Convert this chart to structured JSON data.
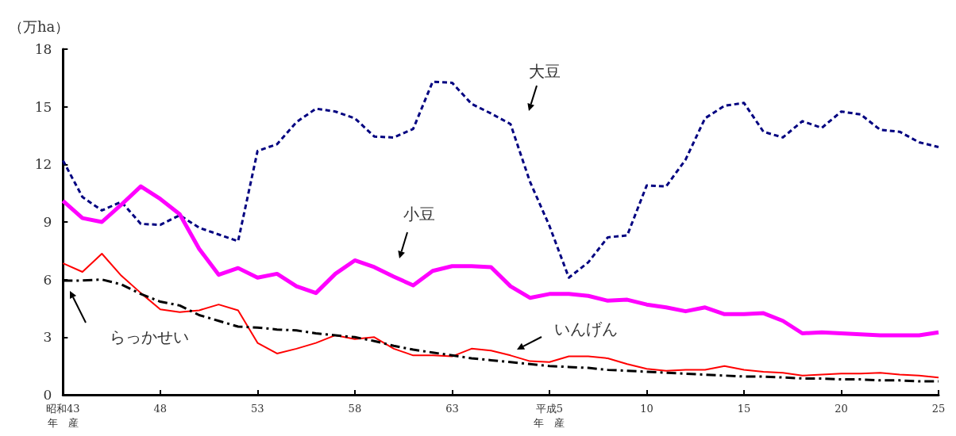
{
  "chart_data": {
    "type": "line",
    "ylabel": "（万ha）",
    "categories": [
      "昭和43\n年　産",
      null,
      null,
      null,
      null,
      "48",
      null,
      null,
      null,
      null,
      "53",
      null,
      null,
      null,
      null,
      "58",
      null,
      null,
      null,
      null,
      "63",
      null,
      null,
      null,
      null,
      "平成5\n年　産",
      null,
      null,
      null,
      null,
      "10",
      null,
      null,
      null,
      null,
      "15",
      null,
      null,
      null,
      null,
      "20",
      null,
      null,
      null,
      null,
      "25"
    ],
    "ylim": [
      0,
      18
    ],
    "yticks": [
      0,
      3,
      6,
      9,
      12,
      15,
      18
    ],
    "grid": false,
    "legend": false,
    "marker": "none",
    "series": [
      {
        "name": "大豆",
        "color": "#000080",
        "line_style": "dashed",
        "values": [
          12.2,
          10.3,
          9.6,
          10.05,
          8.9,
          8.85,
          9.35,
          8.7,
          8.35,
          8.0,
          12.7,
          13.05,
          14.2,
          14.9,
          14.75,
          14.4,
          13.45,
          13.4,
          13.85,
          16.3,
          16.25,
          15.15,
          14.65,
          14.1,
          11.1,
          8.8,
          6.1,
          6.9,
          8.2,
          8.3,
          10.9,
          10.85,
          12.25,
          14.4,
          15.05,
          15.2,
          13.7,
          13.4,
          14.25,
          13.9,
          14.75,
          14.6,
          13.8,
          13.7,
          13.15,
          12.9
        ]
      },
      {
        "name": "小豆",
        "color": "#ff00ff",
        "line_style": "solid",
        "values": [
          10.1,
          9.2,
          9.0,
          9.9,
          10.85,
          10.2,
          9.4,
          7.6,
          6.25,
          6.6,
          6.1,
          6.3,
          5.65,
          5.3,
          6.3,
          7.0,
          6.65,
          6.15,
          5.7,
          6.45,
          6.7,
          6.7,
          6.65,
          5.65,
          5.05,
          5.25,
          5.25,
          5.15,
          4.9,
          4.95,
          4.7,
          4.55,
          4.35,
          4.55,
          4.2,
          4.2,
          4.25,
          3.85,
          3.2,
          3.25,
          3.2,
          3.15,
          3.1,
          3.1,
          3.1,
          3.25
        ]
      },
      {
        "name": "いんげん",
        "color": "#ff0000",
        "line_style": "solid",
        "values": [
          6.85,
          6.4,
          7.35,
          6.2,
          5.3,
          4.45,
          4.3,
          4.4,
          4.7,
          4.4,
          2.7,
          2.15,
          2.4,
          2.7,
          3.1,
          2.9,
          3.0,
          2.4,
          2.05,
          2.05,
          2.0,
          2.4,
          2.3,
          2.05,
          1.75,
          1.7,
          2.0,
          2.0,
          1.9,
          1.6,
          1.35,
          1.25,
          1.3,
          1.3,
          1.5,
          1.3,
          1.2,
          1.15,
          1.0,
          1.05,
          1.1,
          1.1,
          1.15,
          1.05,
          1.0,
          0.9
        ]
      },
      {
        "name": "らっかせい",
        "color": "#000000",
        "line_style": "dashdot",
        "values": [
          5.95,
          5.95,
          6.0,
          5.75,
          5.25,
          4.85,
          4.65,
          4.15,
          3.85,
          3.55,
          3.5,
          3.4,
          3.35,
          3.2,
          3.1,
          3.0,
          2.8,
          2.55,
          2.35,
          2.2,
          2.05,
          1.9,
          1.8,
          1.7,
          1.6,
          1.5,
          1.45,
          1.4,
          1.3,
          1.25,
          1.2,
          1.15,
          1.1,
          1.05,
          1.0,
          0.95,
          0.95,
          0.9,
          0.85,
          0.85,
          0.8,
          0.8,
          0.75,
          0.75,
          0.7,
          0.7
        ]
      }
    ]
  }
}
